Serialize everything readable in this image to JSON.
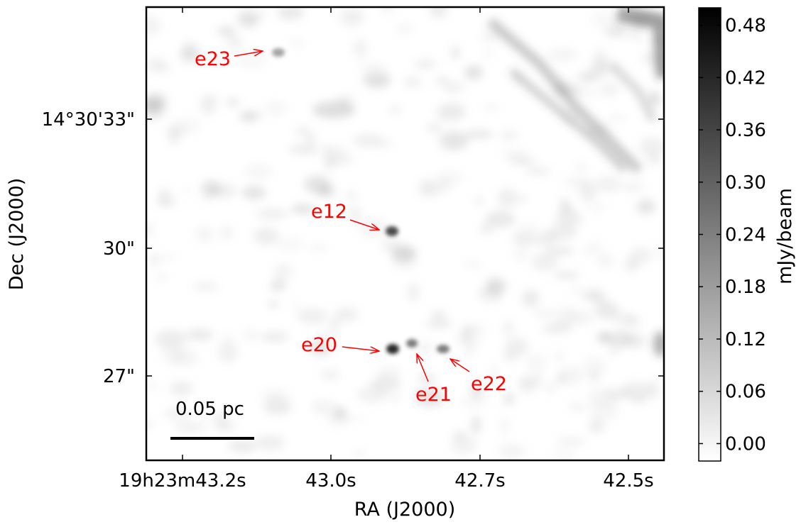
{
  "chart_data": {
    "type": "heatmap",
    "xlabel": "RA (J2000)",
    "ylabel": "Dec (J2000)",
    "x_ticks": [
      "19h23m43.2s",
      "43.0s",
      "42.7s",
      "42.5s"
    ],
    "y_ticks": [
      "14°30'33\"",
      "30\"",
      "27\""
    ],
    "colorbar": {
      "label": "mJy/beam",
      "colormap": "grayscale (white to black)",
      "range": [
        -0.02,
        0.5
      ],
      "ticks": [
        "0.00",
        "0.06",
        "0.12",
        "0.18",
        "0.24",
        "0.30",
        "0.36",
        "0.42",
        "0.48"
      ]
    },
    "scale_bar": {
      "label": "0.05 pc"
    },
    "sources": [
      {
        "name": "e23"
      },
      {
        "name": "e12"
      },
      {
        "name": "e20"
      },
      {
        "name": "e21"
      },
      {
        "name": "e22"
      }
    ],
    "annotation_color": "#ff0000",
    "grid": false
  }
}
